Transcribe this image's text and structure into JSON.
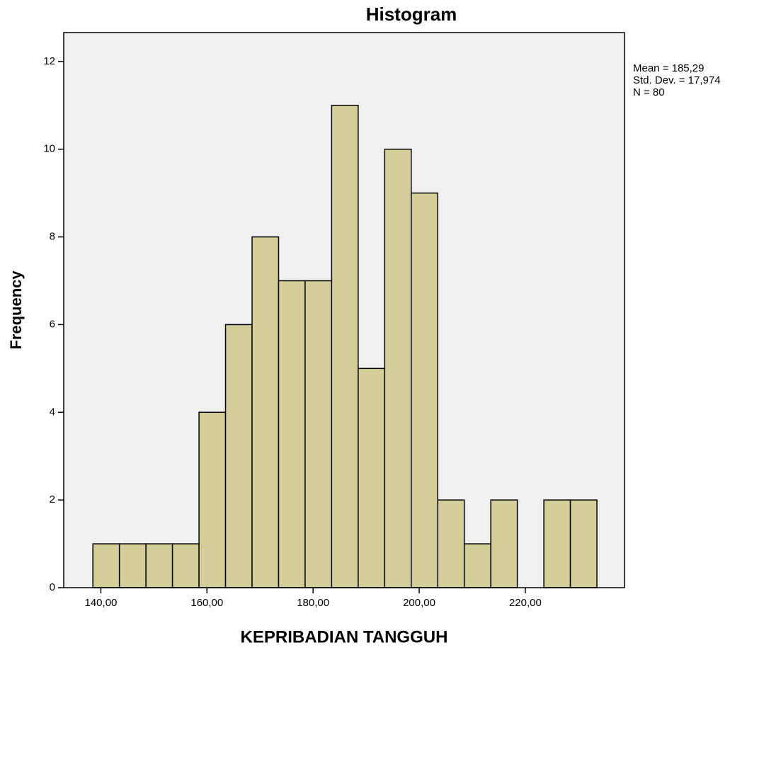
{
  "chart_data": {
    "type": "histogram",
    "title": "Histogram",
    "xlabel": "KEPRIBADIAN TANGGUH",
    "ylabel": "Frequency",
    "annotations": [
      "Mean = 185,29",
      "Std. Dev. = 17,974",
      "N = 80"
    ],
    "bins": [
      138.5,
      143.5,
      148.5,
      153.5,
      158.5,
      163.5,
      168.5,
      173.5,
      178.5,
      183.5,
      188.5,
      193.5,
      198.5,
      203.5,
      208.5,
      213.5,
      218.5,
      223.5,
      228.5,
      233.5
    ],
    "values": [
      1,
      1,
      1,
      1,
      4,
      6,
      8,
      7,
      7,
      11,
      5,
      10,
      9,
      2,
      1,
      2,
      0,
      2,
      2
    ],
    "color": "#d4cf99",
    "xlim": [
      133,
      238.7
    ],
    "xticks": [
      {
        "value": 140,
        "label": "140,00"
      },
      {
        "value": 160,
        "label": "160,00"
      },
      {
        "value": 180,
        "label": "180,00"
      },
      {
        "value": 200,
        "label": "200,00"
      },
      {
        "value": 220,
        "label": "220,00"
      }
    ],
    "ylim": [
      0,
      12.66
    ],
    "yticks": [
      0,
      2,
      4,
      6,
      8,
      10,
      12
    ],
    "grid": false
  }
}
